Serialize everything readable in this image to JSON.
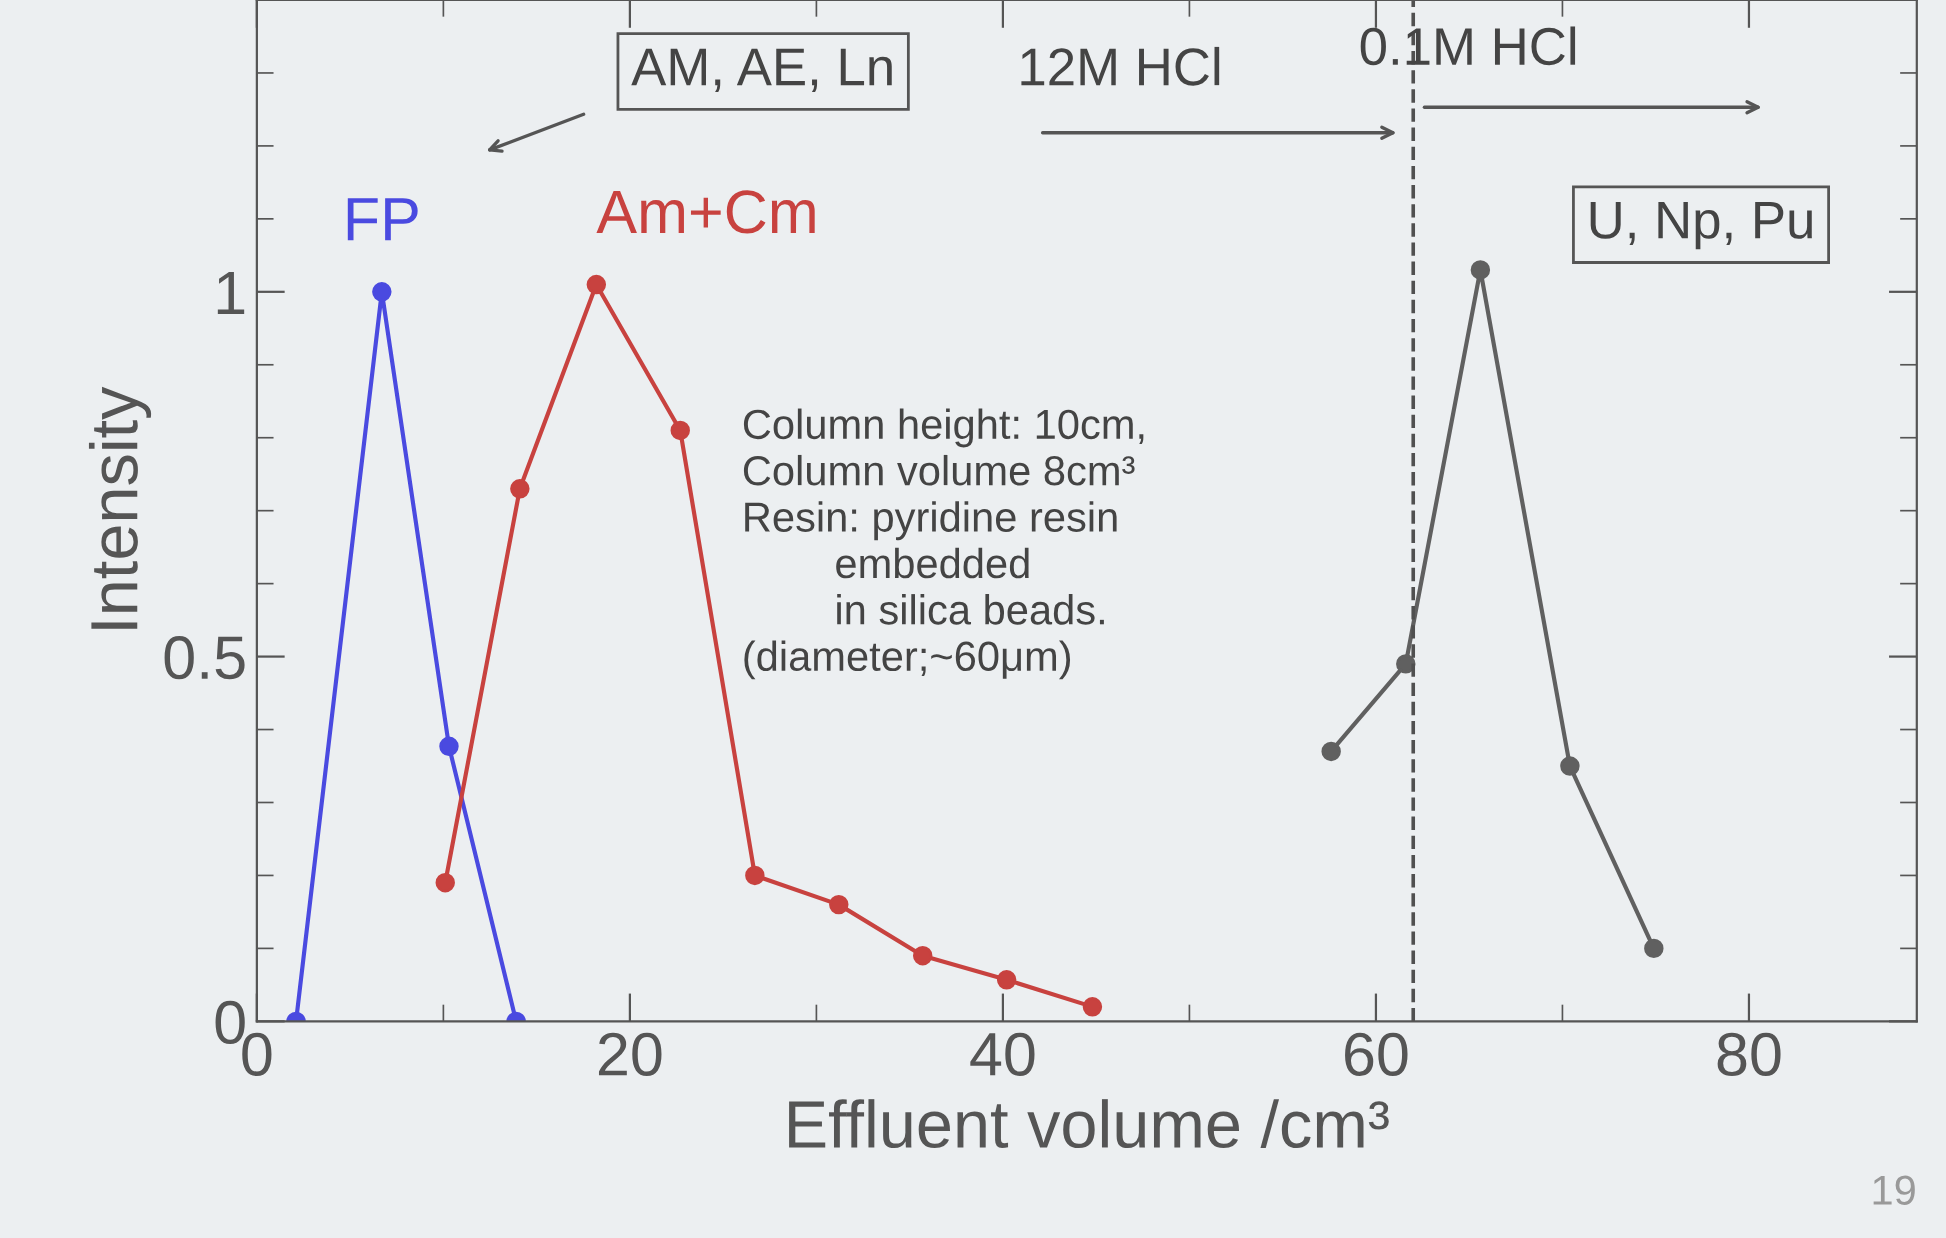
{
  "chart_data": {
    "type": "line",
    "xlabel": "Effluent volume /cm³",
    "ylabel": "Intensity",
    "xlim": [
      0,
      89
    ],
    "ylim": [
      0,
      1.4
    ],
    "xticks": [
      0,
      20,
      40,
      60,
      80
    ],
    "yticks": [
      0,
      0.5,
      1
    ],
    "grid": false,
    "marker": "circle",
    "line_style": "solid",
    "series": [
      {
        "name": "FP",
        "color": "#4a4ae0",
        "x": [
          2.1,
          6.7,
          10.3,
          13.9
        ],
        "values": [
          0,
          1.0,
          0.377,
          0
        ]
      },
      {
        "name": "Am+Cm",
        "color": "#c8423f",
        "x": [
          10.1,
          14.1,
          18.2,
          22.7,
          26.7,
          31.2,
          35.7,
          40.2,
          44.8
        ],
        "values": [
          0.19,
          0.73,
          1.01,
          0.81,
          0.2,
          0.16,
          0.09,
          0.057,
          0.02
        ]
      },
      {
        "color": "#606060",
        "x": [
          57.6,
          61.6,
          65.6,
          70.4,
          74.9
        ],
        "values": [
          0.37,
          0.49,
          1.03,
          0.35,
          0.1
        ]
      }
    ],
    "ref_lines": [
      {
        "axis": "x",
        "value": 62,
        "line_style": "dashed",
        "color": "#505050"
      }
    ],
    "annotations": [
      "AM, AE, Ln",
      "12M HCl",
      "0.1M HCl",
      "U, Np, Pu",
      "Column height: 10cm,\nColumn volume 8cm³\nResin: pyridine resin\n        embedded\n        in silica beads.\n(diameter;~60μm)",
      "19"
    ]
  }
}
